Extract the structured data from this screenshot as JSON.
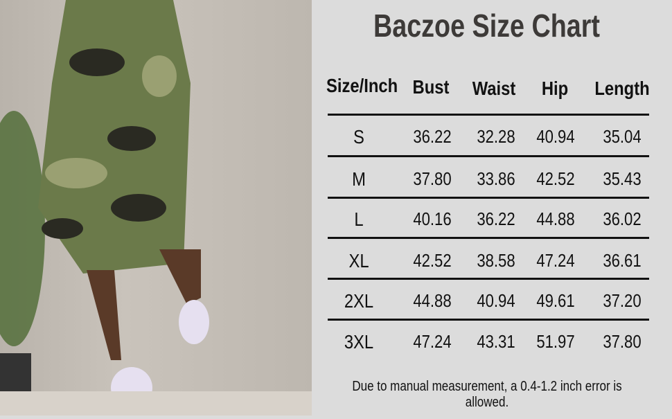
{
  "title": "Baczoe Size Chart",
  "table": {
    "headers": [
      "Size/Inch",
      "Bust",
      "Waist",
      "Hip",
      "Length"
    ],
    "rows": [
      [
        "S",
        "36.22",
        "32.28",
        "40.94",
        "35.04"
      ],
      [
        "M",
        "37.80",
        "33.86",
        "42.52",
        "35.43"
      ],
      [
        "L",
        "40.16",
        "36.22",
        "44.88",
        "36.02"
      ],
      [
        "XL",
        "42.52",
        "38.58",
        "47.24",
        "36.61"
      ],
      [
        "2XL",
        "44.88",
        "40.94",
        "49.61",
        "37.20"
      ],
      [
        "3XL",
        "47.24",
        "43.31",
        "51.97",
        "37.80"
      ]
    ]
  },
  "note": "Due to manual measurement, a 0.4-1.2 inch error is allowed."
}
